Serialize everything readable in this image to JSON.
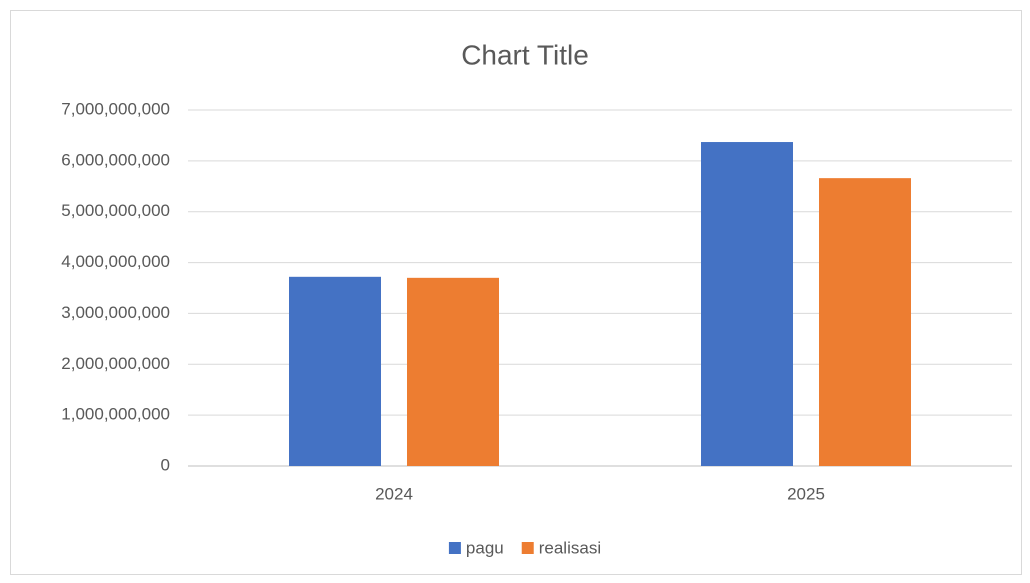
{
  "chart_data": {
    "type": "bar",
    "title": "Chart Title",
    "categories": [
      "2024",
      "2025"
    ],
    "series": [
      {
        "name": "pagu",
        "color": "#4472c4",
        "values": [
          3720000000,
          6370000000
        ]
      },
      {
        "name": "realisasi",
        "color": "#ed7d31",
        "values": [
          3700000000,
          5660000000
        ]
      }
    ],
    "ylim": [
      0,
      7000000000
    ],
    "yticks": [
      0,
      {
        "value": 1000000000,
        "label": "1,000,000,000"
      },
      {
        "value": 2000000000,
        "label": "2,000,000,000"
      },
      {
        "value": 3000000000,
        "label": "3,000,000,000"
      },
      {
        "value": 4000000000,
        "label": "4,000,000,000"
      },
      {
        "value": 5000000000,
        "label": "5,000,000,000"
      },
      {
        "value": 6000000000,
        "label": "6,000,000,000"
      },
      {
        "value": 7000000000,
        "label": "7,000,000,000"
      }
    ],
    "grid": true,
    "legend": "bottom"
  }
}
